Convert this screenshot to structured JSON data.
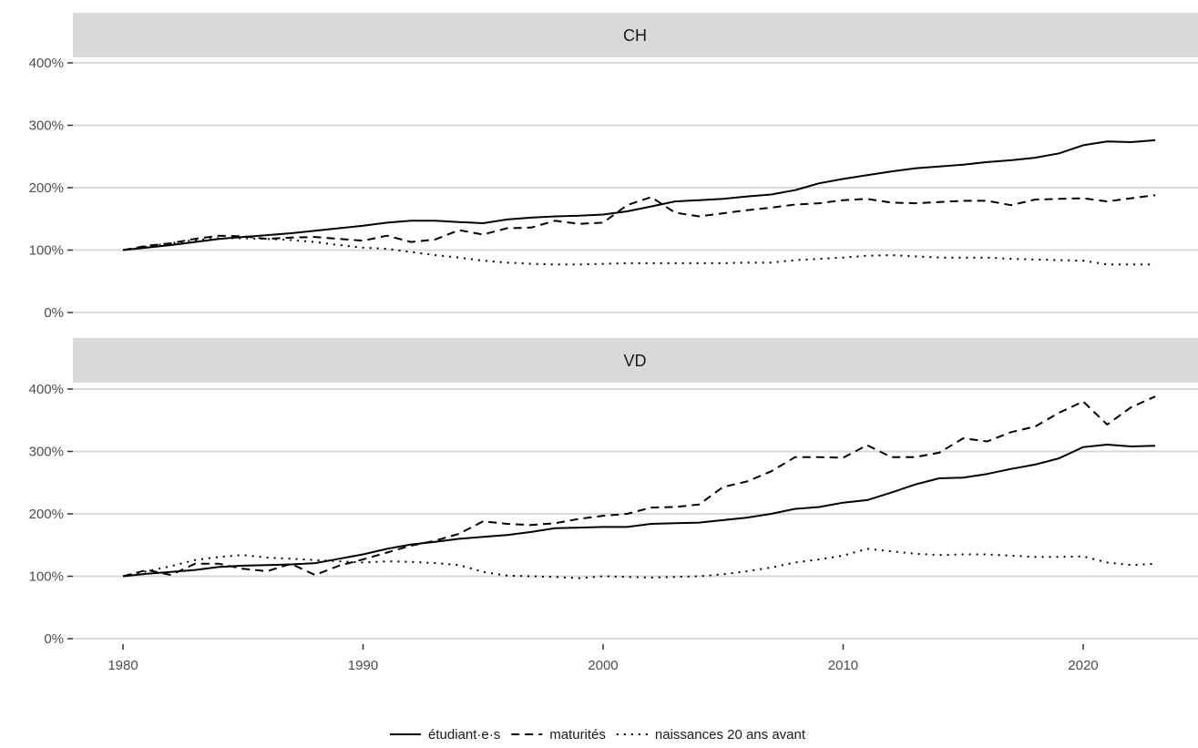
{
  "chart_data": {
    "type": "line",
    "facets": [
      "CH",
      "VD"
    ],
    "x_ticks": [
      1980,
      1990,
      2000,
      2010,
      2020
    ],
    "xlim": [
      1978,
      2024
    ],
    "ylim": [
      0,
      400
    ],
    "y_ticks": [
      0,
      100,
      200,
      300,
      400
    ],
    "y_tick_labels": [
      "0%",
      "100%",
      "200%",
      "300%",
      "400%"
    ],
    "legend_position": "bottom",
    "grid": true,
    "legend": [
      {
        "label": "étudiant·e·s",
        "dash": "solid"
      },
      {
        "label": "maturités",
        "dash": "dashed"
      },
      {
        "label": "naissances 20 ans avant",
        "dash": "dotted"
      }
    ],
    "x": [
      1980,
      1981,
      1982,
      1983,
      1984,
      1985,
      1986,
      1987,
      1988,
      1989,
      1990,
      1991,
      1992,
      1993,
      1994,
      1995,
      1996,
      1997,
      1998,
      1999,
      2000,
      2001,
      2002,
      2003,
      2004,
      2005,
      2006,
      2007,
      2008,
      2009,
      2010,
      2011,
      2012,
      2013,
      2014,
      2015,
      2016,
      2017,
      2018,
      2019,
      2020,
      2021,
      2022,
      2023
    ],
    "panels": [
      {
        "facet": "CH",
        "series": [
          {
            "name": "étudiant·e·s",
            "values": [
              100,
              104,
              108,
              113,
              118,
              121,
              124,
              127,
              131,
              135,
              139,
              144,
              147,
              147,
              145,
              143,
              149,
              152,
              154,
              155,
              157,
              162,
              170,
              178,
              180,
              182,
              186,
              189,
              196,
              207,
              214,
              220,
              226,
              231,
              234,
              237,
              241,
              244,
              248,
              255,
              268,
              274,
              273,
              276
            ]
          },
          {
            "name": "maturités",
            "values": [
              100,
              107,
              111,
              118,
              123,
              122,
              118,
              120,
              121,
              118,
              115,
              123,
              113,
              117,
              132,
              125,
              135,
              136,
              147,
              142,
              144,
              172,
              185,
              160,
              154,
              159,
              164,
              168,
              173,
              175,
              180,
              182,
              176,
              175,
              177,
              179,
              179,
              172,
              181,
              182,
              183,
              178,
              183,
              188
            ]
          },
          {
            "name": "naissances 20 ans avant",
            "values": [
              100,
              106,
              111,
              116,
              119,
              119,
              118,
              116,
              113,
              108,
              104,
              102,
              97,
              92,
              88,
              83,
              80,
              78,
              77,
              77,
              78,
              79,
              79,
              79,
              79,
              79,
              80,
              80,
              84,
              86,
              88,
              91,
              92,
              90,
              88,
              88,
              88,
              86,
              85,
              84,
              83,
              77,
              77,
              77
            ]
          }
        ]
      },
      {
        "facet": "VD",
        "series": [
          {
            "name": "étudiant·e·s",
            "values": [
              100,
              104,
              107,
              110,
              115,
              117,
              118,
              119,
              121,
              128,
              135,
              144,
              151,
              155,
              160,
              163,
              166,
              171,
              177,
              178,
              179,
              179,
              184,
              185,
              186,
              190,
              194,
              200,
              208,
              211,
              218,
              222,
              234,
              247,
              257,
              258,
              264,
              272,
              279,
              289,
              307,
              311,
              308,
              309
            ]
          },
          {
            "name": "maturités",
            "values": [
              100,
              110,
              102,
              120,
              120,
              112,
              108,
              120,
              102,
              117,
              127,
              138,
              149,
              157,
              168,
              188,
              184,
              182,
              185,
              192,
              197,
              200,
              210,
              211,
              215,
              243,
              252,
              268,
              291,
              291,
              290,
              310,
              291,
              291,
              298,
              321,
              316,
              331,
              340,
              362,
              380,
              343,
              371,
              388
            ]
          },
          {
            "name": "naissances 20 ans avant",
            "values": [
              100,
              108,
              116,
              126,
              131,
              134,
              130,
              128,
              126,
              124,
              122,
              124,
              123,
              121,
              118,
              107,
              101,
              100,
              99,
              97,
              100,
              99,
              98,
              99,
              100,
              103,
              108,
              114,
              122,
              127,
              133,
              144,
              140,
              136,
              134,
              135,
              135,
              133,
              131,
              131,
              132,
              122,
              118,
              120
            ]
          }
        ]
      }
    ]
  }
}
